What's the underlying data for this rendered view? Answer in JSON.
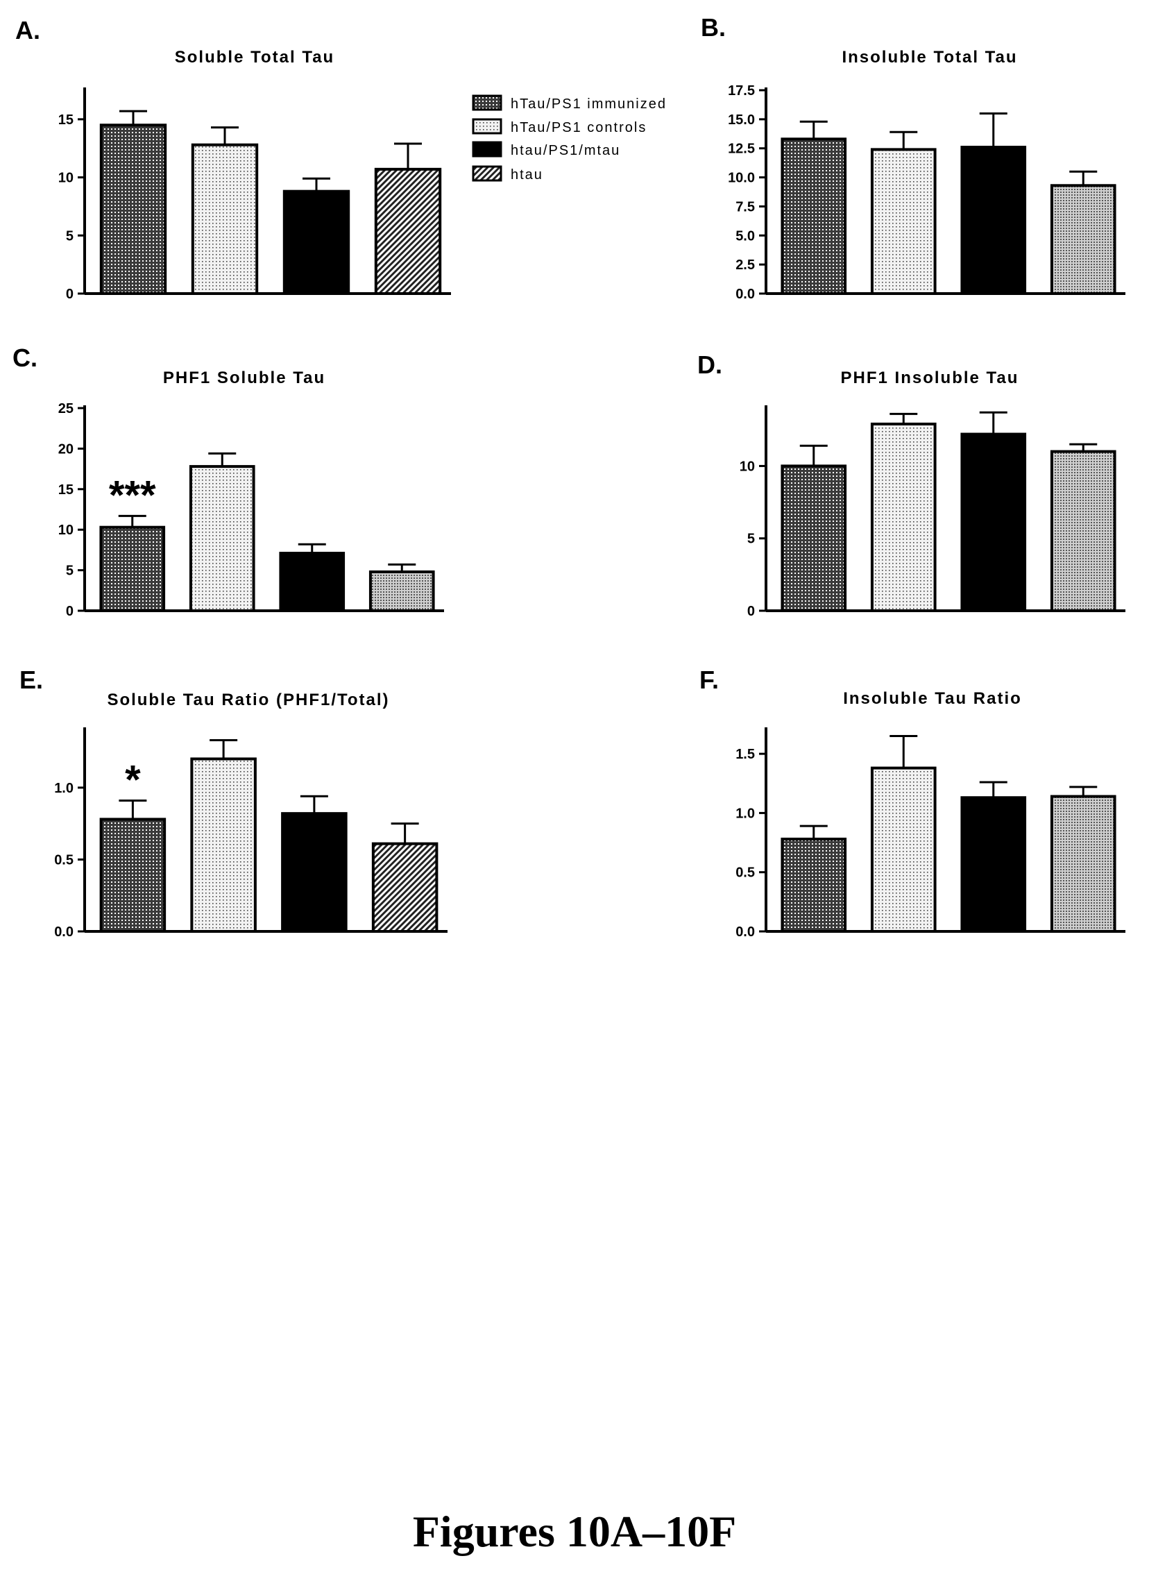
{
  "figure_caption": "Figures 10A–10F",
  "legend": {
    "items": [
      {
        "label": "hTau/PS1 immunized",
        "pattern": "dense-dots"
      },
      {
        "label": "hTau/PS1 controls",
        "pattern": "light-dots"
      },
      {
        "label": "htau/PS1/mtau",
        "pattern": "solid-black"
      },
      {
        "label": "htau",
        "pattern": "diagonal-hatch"
      }
    ]
  },
  "chart_data": [
    {
      "panel": "A.",
      "type": "bar",
      "title": "Soluble Total Tau",
      "xlabel": "",
      "ylabel": "",
      "ylim": [
        0,
        17.5
      ],
      "yticks": [
        0,
        5,
        10,
        15
      ],
      "ytick_labels": [
        "0",
        "5",
        "10",
        "15"
      ],
      "categories": [
        "hTau/PS1 immunized",
        "hTau/PS1 controls",
        "htau/PS1/mtau",
        "htau"
      ],
      "values": [
        14.5,
        12.8,
        8.8,
        10.7
      ],
      "errors": [
        1.2,
        1.5,
        1.1,
        2.2
      ],
      "patterns": [
        "dense-dots",
        "light-dots",
        "solid-black",
        "diagonal-hatch"
      ],
      "annotations": []
    },
    {
      "panel": "B.",
      "type": "bar",
      "title": "Insoluble Total Tau",
      "xlabel": "",
      "ylabel": "",
      "ylim": [
        0,
        17.5
      ],
      "yticks": [
        0,
        2.5,
        5,
        7.5,
        10,
        12.5,
        15,
        17.5
      ],
      "ytick_labels": [
        "0.0",
        "2.5",
        "5.0",
        "7.5",
        "10.0",
        "12.5",
        "15.0",
        "17.5"
      ],
      "categories": [
        "hTau/PS1 immunized",
        "hTau/PS1 controls",
        "htau/PS1/mtau",
        "htau"
      ],
      "values": [
        13.3,
        12.4,
        12.6,
        9.3
      ],
      "errors": [
        1.5,
        1.5,
        2.9,
        1.2
      ],
      "patterns": [
        "dense-dots",
        "light-dots",
        "solid-black",
        "medium-dots"
      ],
      "annotations": []
    },
    {
      "panel": "C.",
      "type": "bar",
      "title": "PHF1 Soluble Tau",
      "xlabel": "",
      "ylabel": "",
      "ylim": [
        0,
        25
      ],
      "yticks": [
        0,
        5,
        10,
        15,
        20,
        25
      ],
      "ytick_labels": [
        "0",
        "5",
        "10",
        "15",
        "20",
        "25"
      ],
      "categories": [
        "hTau/PS1 immunized",
        "hTau/PS1 controls",
        "htau/PS1/mtau",
        "htau"
      ],
      "values": [
        10.3,
        17.8,
        7.1,
        4.8
      ],
      "errors": [
        1.4,
        1.6,
        1.1,
        0.9
      ],
      "patterns": [
        "dense-dots",
        "light-dots",
        "solid-black",
        "medium-dots"
      ],
      "annotations": [
        {
          "bar": 0,
          "text": "***"
        }
      ]
    },
    {
      "panel": "D.",
      "type": "bar",
      "title": "PHF1 Insoluble Tau",
      "xlabel": "",
      "ylabel": "",
      "ylim": [
        0,
        14
      ],
      "yticks": [
        0,
        5,
        10
      ],
      "ytick_labels": [
        "0",
        "5",
        "10"
      ],
      "categories": [
        "hTau/PS1 immunized",
        "hTau/PS1 controls",
        "htau/PS1/mtau",
        "htau"
      ],
      "values": [
        10.0,
        12.9,
        12.2,
        11.0
      ],
      "errors": [
        1.4,
        0.7,
        1.5,
        0.5
      ],
      "patterns": [
        "dense-dots",
        "light-dots",
        "solid-black",
        "medium-dots"
      ],
      "annotations": []
    },
    {
      "panel": "E.",
      "type": "bar",
      "title": "Soluble Tau Ratio (PHF1/Total)",
      "xlabel": "",
      "ylabel": "",
      "ylim": [
        0,
        1.4
      ],
      "yticks": [
        0,
        0.5,
        1.0
      ],
      "ytick_labels": [
        "0.0",
        "0.5",
        "1.0"
      ],
      "categories": [
        "hTau/PS1 immunized",
        "hTau/PS1 controls",
        "htau/PS1/mtau",
        "htau"
      ],
      "values": [
        0.78,
        1.2,
        0.82,
        0.61
      ],
      "errors": [
        0.13,
        0.13,
        0.12,
        0.14
      ],
      "patterns": [
        "dense-dots",
        "light-dots",
        "solid-black",
        "diagonal-hatch"
      ],
      "annotations": [
        {
          "bar": 0,
          "text": "*"
        }
      ]
    },
    {
      "panel": "F.",
      "type": "bar",
      "title": "Insoluble Tau Ratio",
      "xlabel": "",
      "ylabel": "",
      "ylim": [
        0,
        1.7
      ],
      "yticks": [
        0,
        0.5,
        1.0,
        1.5
      ],
      "ytick_labels": [
        "0.0",
        "0.5",
        "1.0",
        "1.5"
      ],
      "categories": [
        "hTau/PS1 immunized",
        "hTau/PS1 controls",
        "htau/PS1/mtau",
        "htau"
      ],
      "values": [
        0.78,
        1.38,
        1.13,
        1.14
      ],
      "errors": [
        0.11,
        0.27,
        0.13,
        0.08
      ],
      "patterns": [
        "dense-dots",
        "light-dots",
        "solid-black",
        "medium-dots"
      ],
      "annotations": []
    }
  ]
}
